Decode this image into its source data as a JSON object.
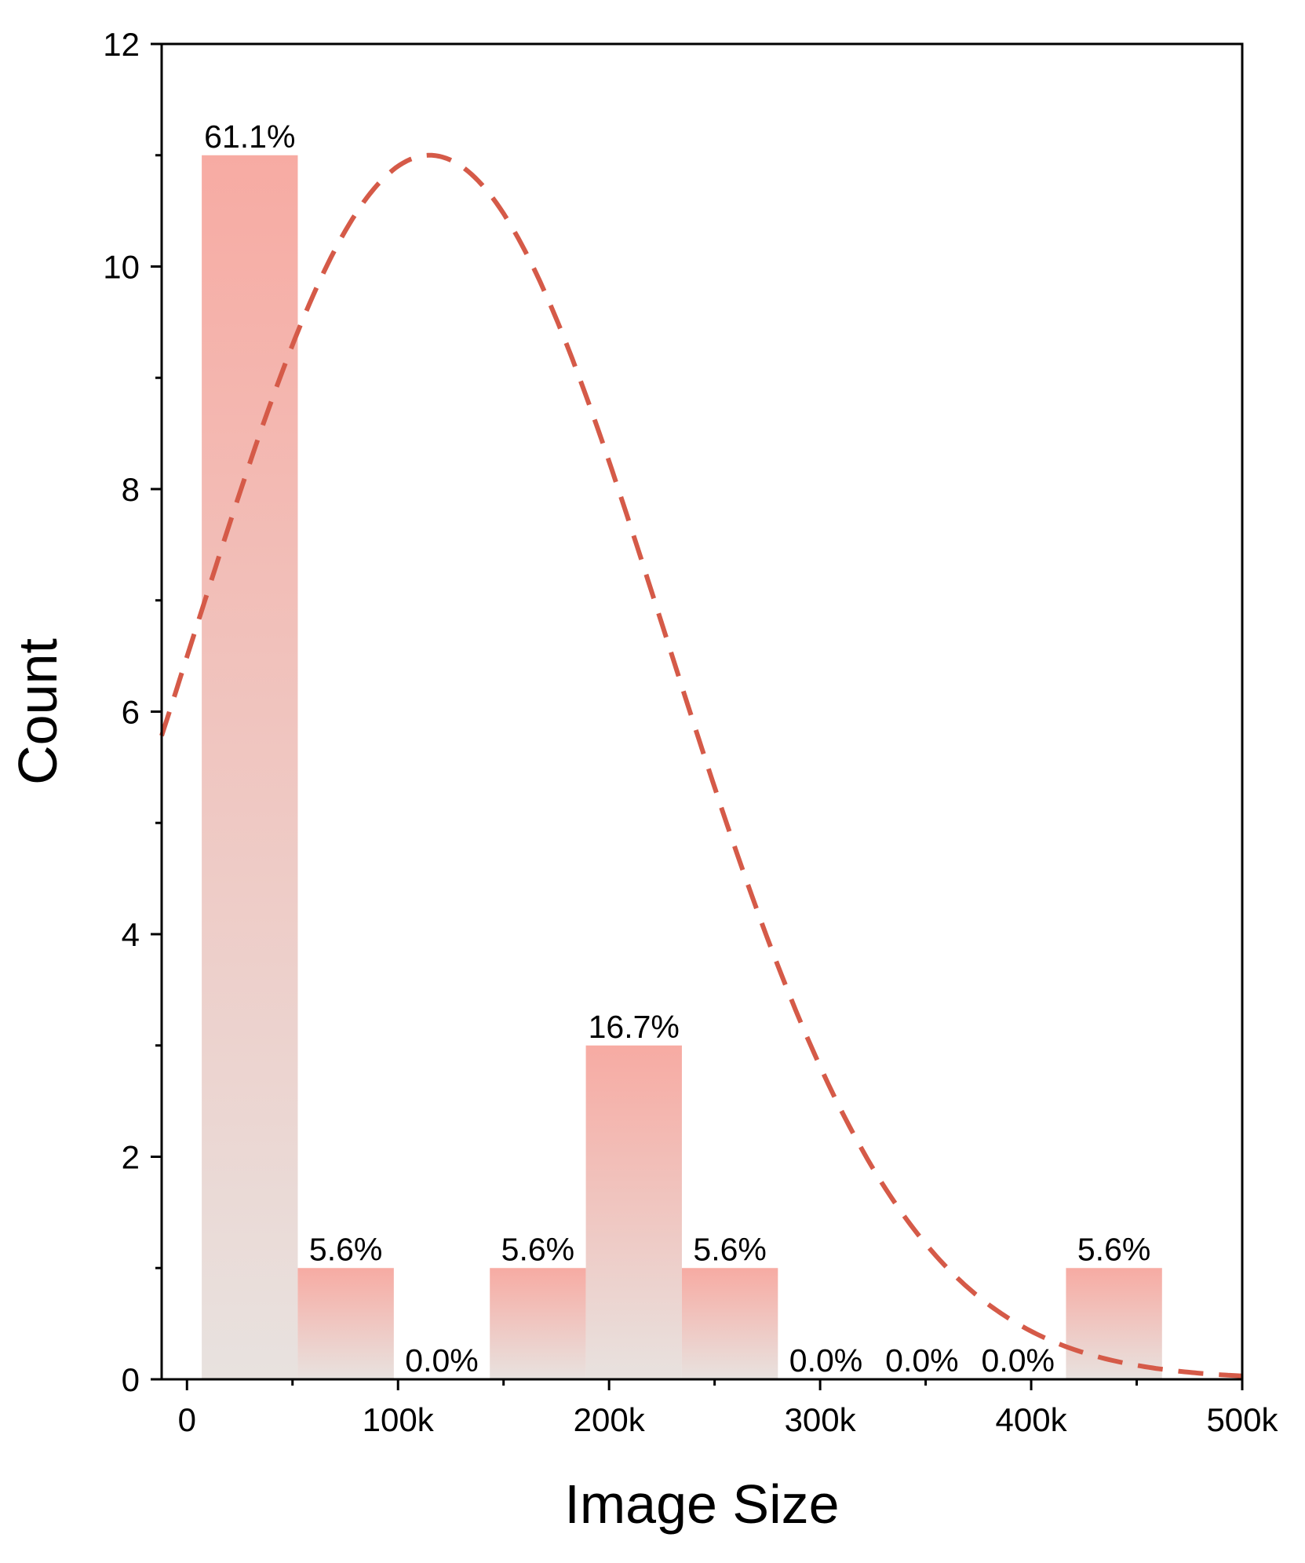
{
  "chart_data": {
    "type": "bar",
    "title": "",
    "xlabel": "Image Size",
    "ylabel": "Count",
    "xlim": [
      -12000,
      500000
    ],
    "ylim": [
      0,
      12
    ],
    "x_ticks": [
      0,
      100000,
      200000,
      300000,
      400000,
      500000
    ],
    "x_tick_labels": [
      "0",
      "100k",
      "200k",
      "300k",
      "400k",
      "500k"
    ],
    "y_ticks": [
      0,
      2,
      4,
      6,
      8,
      10,
      12
    ],
    "y_tick_labels": [
      "0",
      "2",
      "4",
      "6",
      "8",
      "10",
      "12"
    ],
    "bins": [
      {
        "start": 7000,
        "end": 52500,
        "count": 11,
        "label": "61.1%"
      },
      {
        "start": 52500,
        "end": 98000,
        "count": 1,
        "label": "5.6%"
      },
      {
        "start": 98000,
        "end": 143500,
        "count": 0,
        "label": "0.0%"
      },
      {
        "start": 143500,
        "end": 189000,
        "count": 1,
        "label": "5.6%"
      },
      {
        "start": 189000,
        "end": 234500,
        "count": 3,
        "label": "16.7%"
      },
      {
        "start": 234500,
        "end": 280000,
        "count": 1,
        "label": "5.6%"
      },
      {
        "start": 280000,
        "end": 325500,
        "count": 0,
        "label": "0.0%"
      },
      {
        "start": 325500,
        "end": 371000,
        "count": 0,
        "label": "0.0%"
      },
      {
        "start": 371000,
        "end": 416500,
        "count": 0,
        "label": "0.0%"
      },
      {
        "start": 416500,
        "end": 462000,
        "count": 1,
        "label": "5.6%"
      }
    ],
    "fit_curve": {
      "type": "normal",
      "style": "dashed",
      "mean": 115000,
      "sd": 112000,
      "peak": 11.0
    },
    "colors": {
      "bar_top": "#f7aba3",
      "bar_bottom": "#e8e2df",
      "curve": "#d55a48",
      "axis": "#000000"
    }
  }
}
